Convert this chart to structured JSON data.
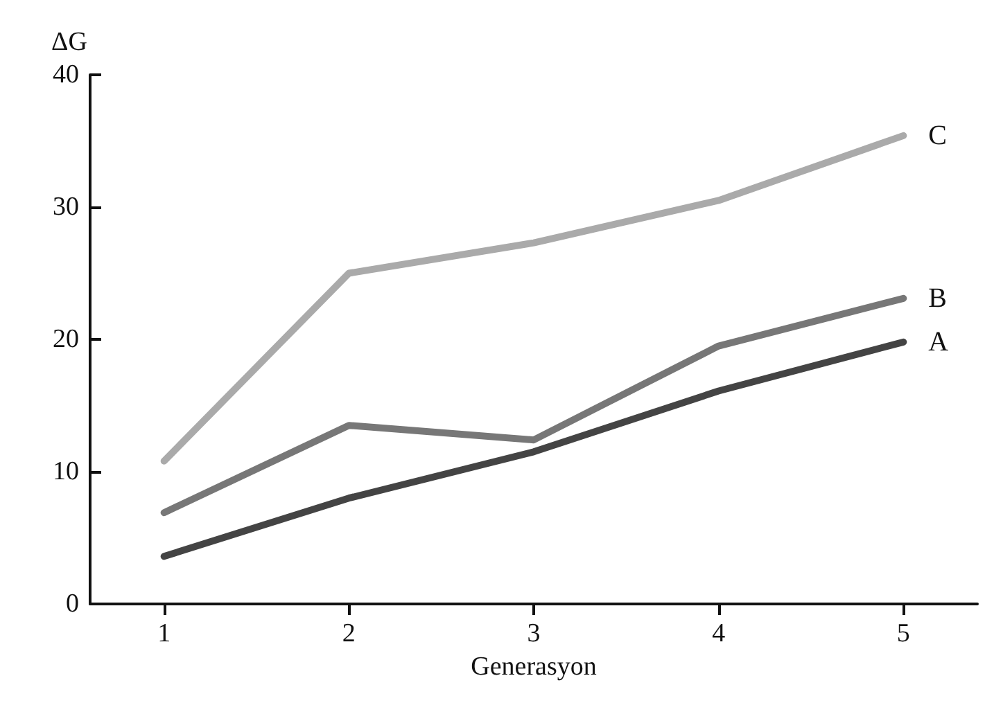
{
  "chart_data": {
    "type": "line",
    "xlabel": "Generasyon",
    "ylabel": "ΔG",
    "x": [
      1,
      2,
      3,
      4,
      5
    ],
    "series": [
      {
        "name": "A",
        "color": "#444444",
        "values": [
          3.6,
          8.0,
          11.5,
          16.1,
          19.8
        ]
      },
      {
        "name": "B",
        "color": "#777777",
        "values": [
          6.9,
          13.5,
          12.4,
          19.5,
          23.1
        ]
      },
      {
        "name": "C",
        "color": "#aaaaaa",
        "values": [
          10.8,
          25.0,
          27.3,
          30.5,
          35.4
        ]
      }
    ],
    "xlim": [
      0.6,
      5.4
    ],
    "xticks": [
      1,
      2,
      3,
      4,
      5
    ],
    "ylim": [
      0,
      40
    ],
    "yticks": [
      0,
      10,
      20,
      30,
      40
    ],
    "grid": false,
    "legend": false,
    "marker": "none",
    "line_style": "solid"
  }
}
